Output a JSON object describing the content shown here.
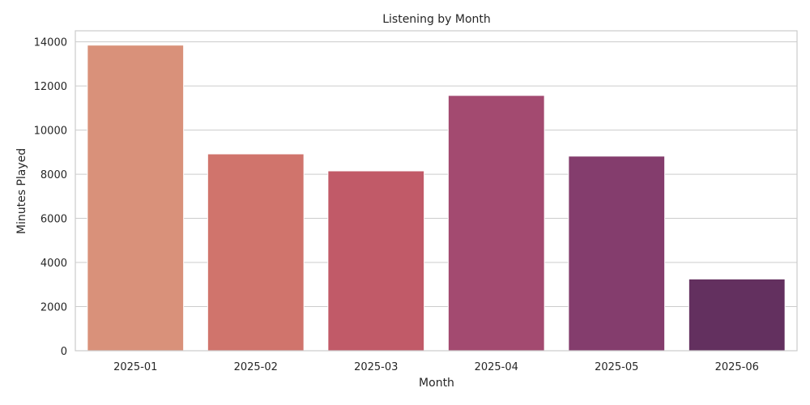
{
  "chart_data": {
    "type": "bar",
    "title": "Listening by Month",
    "xlabel": "Month",
    "ylabel": "Minutes Played",
    "categories": [
      "2025-01",
      "2025-02",
      "2025-03",
      "2025-04",
      "2025-05",
      "2025-06"
    ],
    "values": [
      13850,
      8920,
      8150,
      11570,
      8820,
      3250
    ],
    "colors": [
      "#d9917a",
      "#d0746c",
      "#c15a68",
      "#a34a70",
      "#843d6d",
      "#63305f"
    ],
    "ylim": [
      0,
      14500
    ],
    "yticks": [
      0,
      2000,
      4000,
      6000,
      8000,
      10000,
      12000,
      14000
    ],
    "grid": "horizontal"
  }
}
